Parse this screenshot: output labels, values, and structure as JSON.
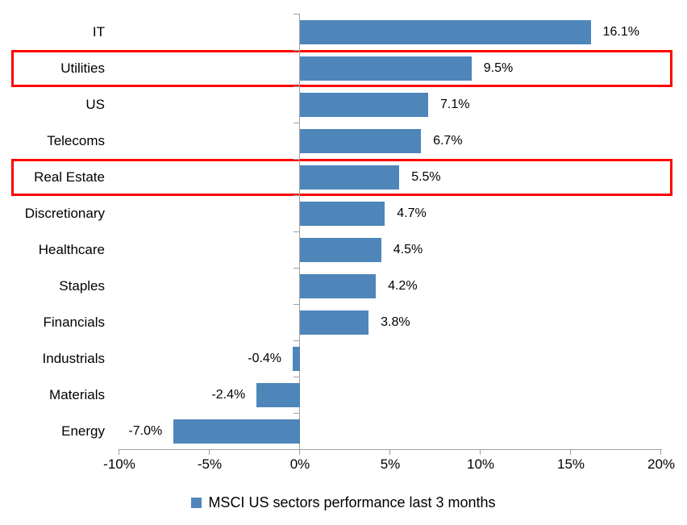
{
  "chart_data": {
    "type": "bar",
    "orientation": "horizontal",
    "title": "",
    "categories": [
      "IT",
      "Utilities",
      "US",
      "Telecoms",
      "Real Estate",
      "Discretionary",
      "Healthcare",
      "Staples",
      "Financials",
      "Industrials",
      "Materials",
      "Energy"
    ],
    "values": [
      16.1,
      9.5,
      7.1,
      6.7,
      5.5,
      4.7,
      4.5,
      4.2,
      3.8,
      -0.4,
      -2.4,
      -7.0
    ],
    "value_labels": [
      "16.1%",
      "9.5%",
      "7.1%",
      "6.7%",
      "5.5%",
      "4.7%",
      "4.5%",
      "4.2%",
      "3.8%",
      "-0.4%",
      "-2.4%",
      "-7.0%"
    ],
    "highlighted_categories": [
      "Utilities",
      "Real Estate"
    ],
    "x_tick_labels": [
      "-10%",
      "-5%",
      "0%",
      "5%",
      "10%",
      "15%",
      "20%"
    ],
    "x_tick_values": [
      -10,
      -5,
      0,
      5,
      10,
      15,
      20
    ],
    "xlim": [
      -10,
      20
    ],
    "xlabel": "",
    "ylabel": "",
    "grid": false,
    "legend": "MSCI US sectors performance last 3 months",
    "legend_position": "bottom-center",
    "bar_color": "#4e86ba",
    "highlight_color": "#fe0000",
    "axis_color": "#a0a0a0",
    "text_color": "#000000"
  }
}
